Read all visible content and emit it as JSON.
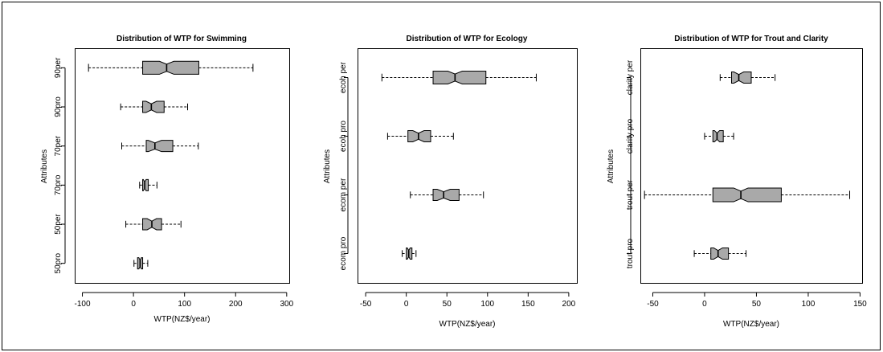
{
  "chart_data": [
    {
      "type": "boxplot",
      "title": "Distribution of WTP for Swimming",
      "xlabel": "WTP(NZ$/year)",
      "ylabel": "Attributes",
      "xlim": [
        -115,
        305
      ],
      "xticks": [
        -100,
        0,
        100,
        200,
        300
      ],
      "categories": [
        "50pro",
        "50per",
        "70pro",
        "70per",
        "90pro",
        "90per"
      ],
      "boxes": [
        {
          "category": "50pro",
          "whisker_low": 1,
          "q1": 8,
          "median": 13,
          "q3": 18,
          "whisker_high": 28
        },
        {
          "category": "50per",
          "whisker_low": -15,
          "q1": 18,
          "median": 36,
          "q3": 55,
          "whisker_high": 93
        },
        {
          "category": "70pro",
          "whisker_low": 12,
          "q1": 18,
          "median": 22,
          "q3": 29,
          "whisker_high": 46
        },
        {
          "category": "70per",
          "whisker_low": -23,
          "q1": 25,
          "median": 42,
          "q3": 77,
          "whisker_high": 127
        },
        {
          "category": "90pro",
          "whisker_low": -25,
          "q1": 18,
          "median": 35,
          "q3": 60,
          "whisker_high": 106
        },
        {
          "category": "90per",
          "whisker_low": -88,
          "q1": 18,
          "median": 65,
          "q3": 128,
          "whisker_high": 234
        }
      ]
    },
    {
      "type": "boxplot",
      "title": "Distribution of WTP for Ecology",
      "xlabel": "WTP(NZ$/year)",
      "ylabel": "Attributes",
      "xlim": [
        -60,
        210
      ],
      "xticks": [
        -50,
        0,
        50,
        100,
        150,
        200
      ],
      "categories": [
        "ecom pro",
        "ecom per",
        "ecoh pro",
        "ecoh per"
      ],
      "boxes": [
        {
          "category": "ecom pro",
          "whisker_low": -5,
          "q1": 0,
          "median": 3,
          "q3": 7,
          "whisker_high": 12
        },
        {
          "category": "ecom per",
          "whisker_low": 5,
          "q1": 33,
          "median": 46,
          "q3": 65,
          "whisker_high": 95
        },
        {
          "category": "ecoh pro",
          "whisker_low": -23,
          "q1": 2,
          "median": 15,
          "q3": 30,
          "whisker_high": 58
        },
        {
          "category": "ecoh per",
          "whisker_low": -30,
          "q1": 33,
          "median": 60,
          "q3": 98,
          "whisker_high": 160
        }
      ]
    },
    {
      "type": "boxplot",
      "title": "Distribution of WTP for Trout and Clarity",
      "xlabel": "WTP(NZ$/year)",
      "ylabel": "Attributes",
      "xlim": [
        -62,
        152
      ],
      "xticks": [
        -50,
        0,
        50,
        100,
        150
      ],
      "categories": [
        "trout pro",
        "trout per",
        "clarity pro",
        "clarity per"
      ],
      "boxes": [
        {
          "category": "trout pro",
          "whisker_low": -10,
          "q1": 6,
          "median": 13,
          "q3": 23,
          "whisker_high": 40
        },
        {
          "category": "trout per",
          "whisker_low": -58,
          "q1": 8,
          "median": 35,
          "q3": 74,
          "whisker_high": 140
        },
        {
          "category": "clarity pro",
          "whisker_low": 0,
          "q1": 8,
          "median": 12,
          "q3": 18,
          "whisker_high": 28
        },
        {
          "category": "clarity per",
          "whisker_low": 15,
          "q1": 26,
          "median": 33,
          "q3": 45,
          "whisker_high": 68
        }
      ]
    }
  ]
}
